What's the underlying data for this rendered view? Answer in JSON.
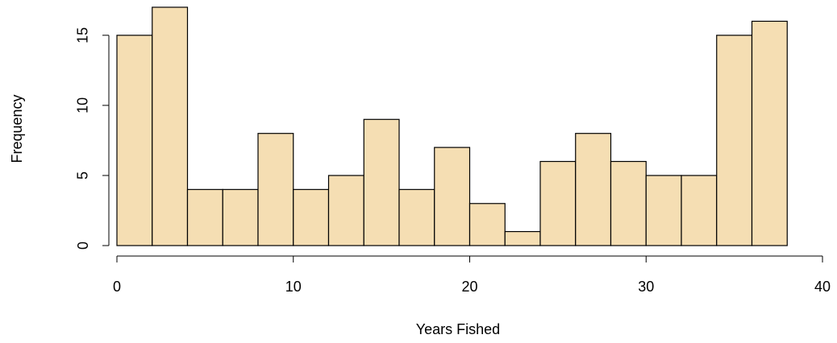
{
  "chart_data": {
    "type": "histogram",
    "xlabel": "Years Fished",
    "ylabel": "Frequency",
    "bins": [
      0,
      2,
      4,
      6,
      8,
      10,
      12,
      14,
      16,
      18,
      20,
      22,
      24,
      26,
      28,
      30,
      32,
      34,
      36,
      38,
      40
    ],
    "values": [
      15,
      17,
      4,
      4,
      8,
      4,
      5,
      9,
      4,
      7,
      3,
      1,
      6,
      8,
      6,
      5,
      5,
      15,
      16,
      0
    ],
    "color": "#f5deb3",
    "xlim": [
      0,
      40
    ],
    "xticks": [
      0,
      10,
      20,
      30,
      40
    ],
    "ylim": [
      0,
      17
    ],
    "yticks": [
      0,
      5,
      10,
      15
    ]
  }
}
